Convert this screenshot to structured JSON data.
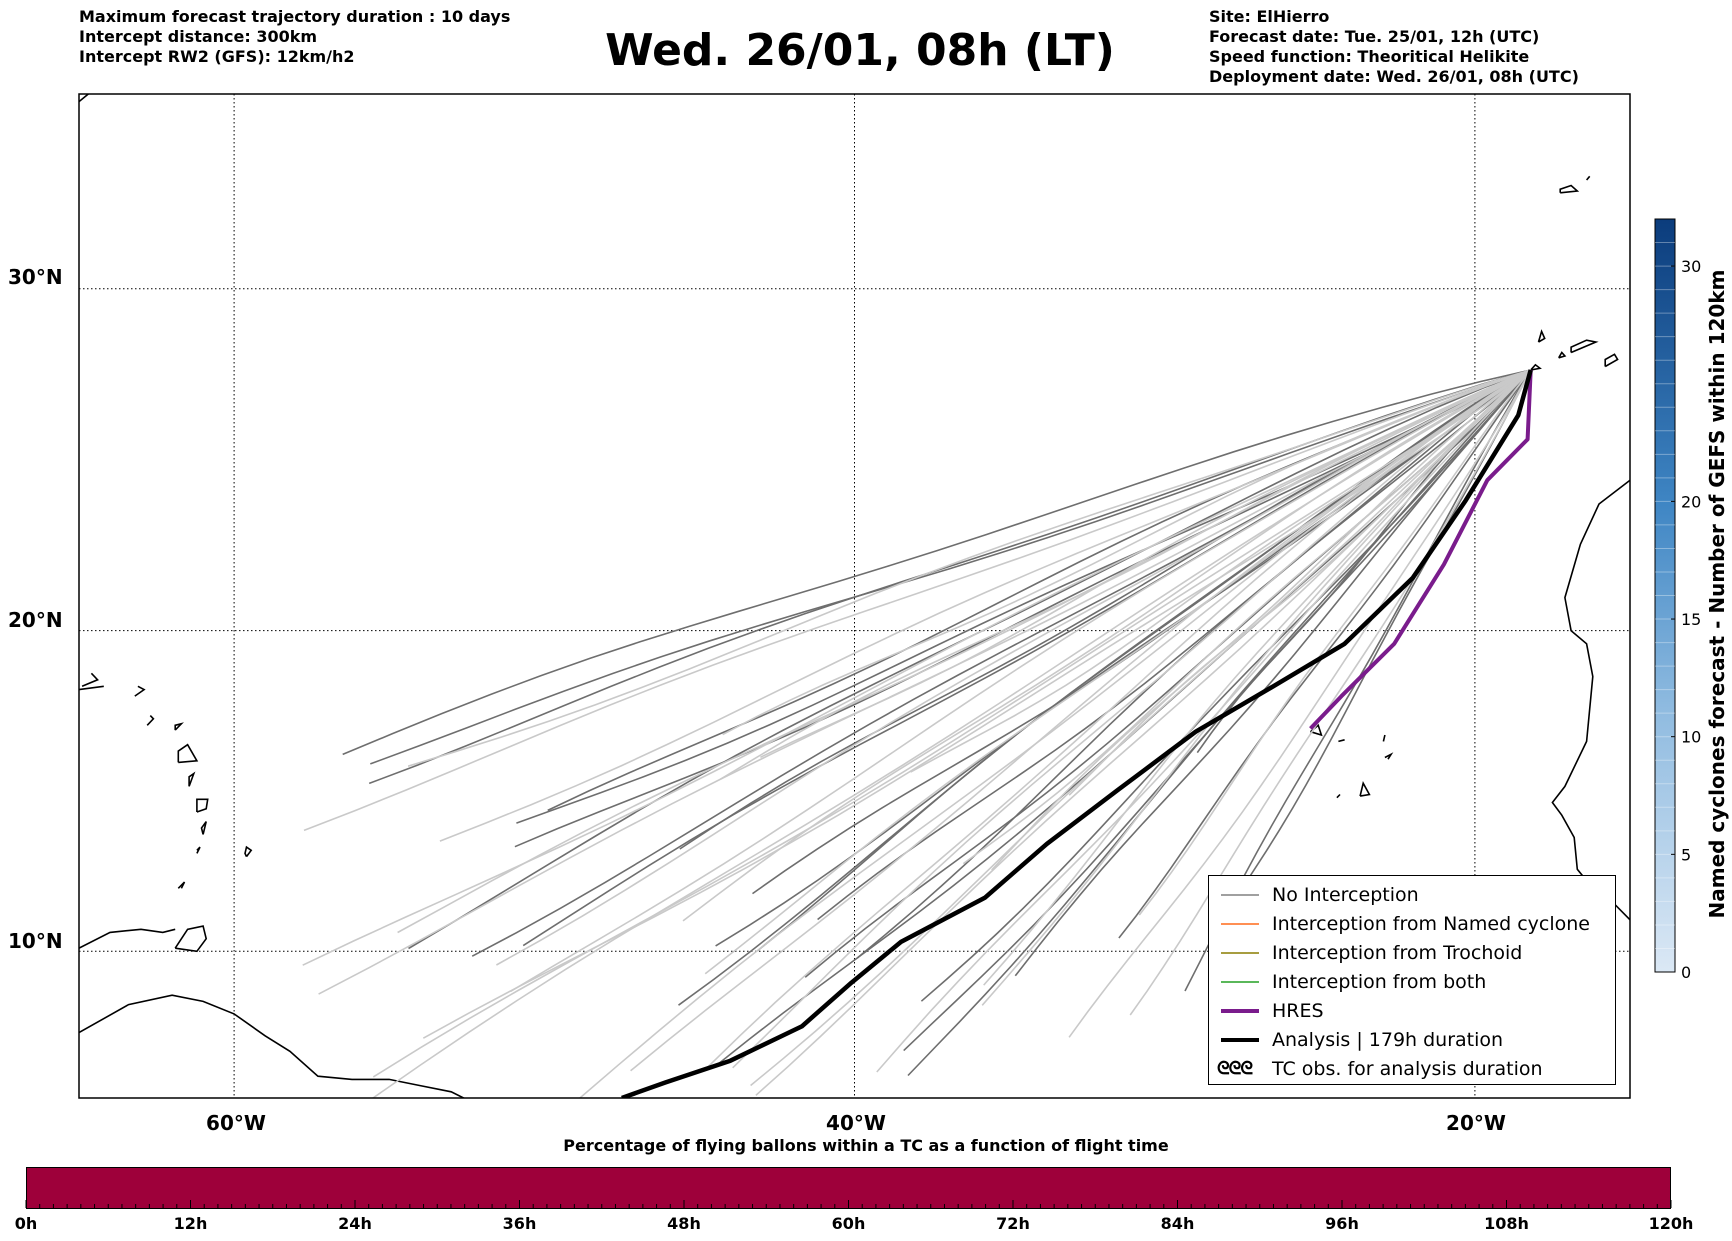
{
  "header": {
    "left_lines": [
      "Maximum forecast trajectory duration : 10 days",
      "Intercept distance: 300km",
      "Intercept RW2 (GFS):  12km/h2"
    ],
    "title": "Wed. 26/01, 08h (LT)",
    "right_lines": [
      "Site: ElHierro",
      "Forecast date: Tue. 25/01, 12h (UTC)",
      "Speed function: Theoritical Helikite",
      "Deployment date: Wed. 26/01, 08h (UTC)"
    ]
  },
  "map": {
    "lat_labels": [
      "30°N",
      "20°N",
      "10°N"
    ],
    "lon_labels": [
      "60°W",
      "40°W",
      "20°W"
    ],
    "extent": {
      "lon_min": -65,
      "lon_max": -15,
      "lat_min": 5.3,
      "lat_max": 35.3
    },
    "site": {
      "name": "ElHierro",
      "lon": -18.2,
      "lat": 27.7
    }
  },
  "colorbar": {
    "label": "Named cyclones forecast - Number of GEFS within 120km",
    "ticks": [
      "0",
      "5",
      "10",
      "15",
      "20",
      "30"
    ],
    "tick_values": [
      0,
      5,
      10,
      15,
      20,
      30
    ],
    "max": 32,
    "color_light": "#dbe8f5",
    "color_dark": "#0b3c7c"
  },
  "legend": [
    {
      "label": "No Interception",
      "color": "#808080",
      "style": "thin"
    },
    {
      "label": "Interception from Named cyclone",
      "color": "#ff6a1a",
      "style": "thin"
    },
    {
      "label": "Interception from Trochoid",
      "color": "#8a7d00",
      "style": "thin"
    },
    {
      "label": "Interception from both",
      "color": "#23a023",
      "style": "thin"
    },
    {
      "label": "HRES",
      "color": "#7a1c8c",
      "style": "thick"
    },
    {
      "label": "Analysis | 179h duration",
      "color": "#000000",
      "style": "thick"
    },
    {
      "label": "TC obs. for analysis duration",
      "color": "#000000",
      "style": "symbol",
      "symbol": "ᘓᘓᘓ"
    }
  ],
  "bottom_bar": {
    "title": "Percentage of flying ballons within a TC as a function of flight time",
    "color": "#9e003a",
    "ticks": [
      "0h",
      "12h",
      "24h",
      "36h",
      "48h",
      "60h",
      "72h",
      "84h",
      "96h",
      "108h",
      "120h"
    ]
  }
}
